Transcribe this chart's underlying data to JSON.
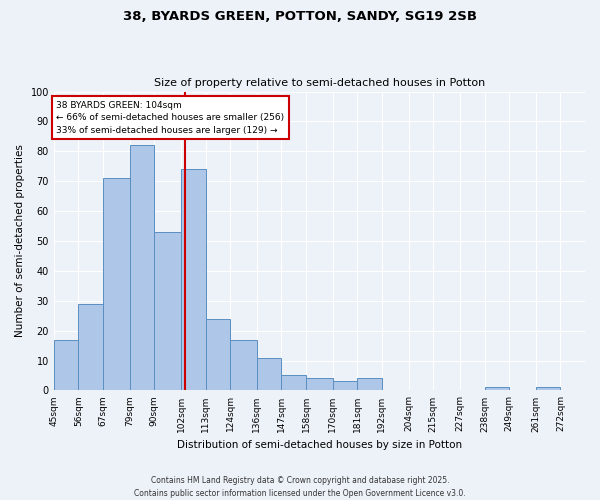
{
  "title1": "38, BYARDS GREEN, POTTON, SANDY, SG19 2SB",
  "title2": "Size of property relative to semi-detached houses in Potton",
  "xlabel": "Distribution of semi-detached houses by size in Potton",
  "ylabel": "Number of semi-detached properties",
  "bin_labels": [
    "45sqm",
    "56sqm",
    "67sqm",
    "79sqm",
    "90sqm",
    "102sqm",
    "113sqm",
    "124sqm",
    "136sqm",
    "147sqm",
    "158sqm",
    "170sqm",
    "181sqm",
    "192sqm",
    "204sqm",
    "215sqm",
    "227sqm",
    "238sqm",
    "249sqm",
    "261sqm",
    "272sqm"
  ],
  "bin_edges": [
    45,
    56,
    67,
    79,
    90,
    102,
    113,
    124,
    136,
    147,
    158,
    170,
    181,
    192,
    204,
    215,
    227,
    238,
    249,
    261,
    272,
    283
  ],
  "bar_heights": [
    17,
    29,
    71,
    82,
    53,
    74,
    24,
    17,
    11,
    5,
    4,
    3,
    4,
    0,
    0,
    0,
    0,
    1,
    0,
    1,
    0
  ],
  "bar_color": "#aec6e8",
  "bar_edge_color": "#5a8fc2",
  "property_value": 104,
  "vline_color": "#cc0000",
  "annotation_text": "38 BYARDS GREEN: 104sqm\n← 66% of semi-detached houses are smaller (256)\n33% of semi-detached houses are larger (129) →",
  "annotation_box_color": "#ffffff",
  "annotation_box_edge": "#cc0000",
  "ylim": [
    0,
    100
  ],
  "yticks": [
    0,
    10,
    20,
    30,
    40,
    50,
    60,
    70,
    80,
    90,
    100
  ],
  "background_color": "#edf2f9",
  "grid_color": "#ffffff",
  "footer": "Contains HM Land Registry data © Crown copyright and database right 2025.\nContains public sector information licensed under the Open Government Licence v3.0."
}
